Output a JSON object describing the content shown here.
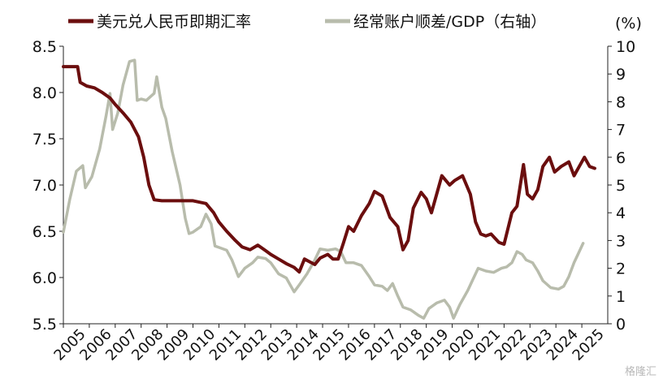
{
  "chart_data": {
    "type": "line",
    "legend": [
      {
        "label": "美元兑人民币即期汇率",
        "color": "#6b0e0e"
      },
      {
        "label": "经常账户顺差/GDP（右轴）",
        "color": "#b8bcac"
      }
    ],
    "left_axis": {
      "min": 5.5,
      "max": 8.5,
      "ticks": [
        "5.5",
        "6.0",
        "6.5",
        "7.0",
        "7.5",
        "8.0",
        "8.5"
      ]
    },
    "right_axis": {
      "unit_label": "(%)",
      "min": 0,
      "max": 10,
      "ticks": [
        "0",
        "1",
        "2",
        "3",
        "4",
        "5",
        "6",
        "7",
        "8",
        "9",
        "10"
      ]
    },
    "x_axis": {
      "labels": [
        "2005",
        "2006",
        "2007",
        "2008",
        "2009",
        "2010",
        "2011",
        "2012",
        "2013",
        "2014",
        "2015",
        "2016",
        "2017",
        "2018",
        "2019",
        "2020",
        "2021",
        "2022",
        "2023",
        "2024",
        "2025"
      ]
    },
    "series": [
      {
        "name": "美元兑人民币即期汇率",
        "axis": "left",
        "color": "#6b0e0e",
        "points": [
          [
            2005.0,
            8.28
          ],
          [
            2005.55,
            8.28
          ],
          [
            2005.65,
            8.11
          ],
          [
            2005.9,
            8.07
          ],
          [
            2006.2,
            8.05
          ],
          [
            2006.5,
            8.0
          ],
          [
            2006.8,
            7.94
          ],
          [
            2007.0,
            7.87
          ],
          [
            2007.3,
            7.78
          ],
          [
            2007.6,
            7.68
          ],
          [
            2007.9,
            7.52
          ],
          [
            2008.1,
            7.3
          ],
          [
            2008.3,
            7.0
          ],
          [
            2008.5,
            6.84
          ],
          [
            2008.8,
            6.83
          ],
          [
            2009.2,
            6.83
          ],
          [
            2009.6,
            6.83
          ],
          [
            2010.0,
            6.83
          ],
          [
            2010.5,
            6.8
          ],
          [
            2010.8,
            6.7
          ],
          [
            2011.0,
            6.6
          ],
          [
            2011.3,
            6.5
          ],
          [
            2011.6,
            6.41
          ],
          [
            2011.9,
            6.33
          ],
          [
            2012.2,
            6.3
          ],
          [
            2012.5,
            6.35
          ],
          [
            2012.8,
            6.29
          ],
          [
            2013.0,
            6.25
          ],
          [
            2013.3,
            6.2
          ],
          [
            2013.6,
            6.15
          ],
          [
            2013.9,
            6.11
          ],
          [
            2014.1,
            6.06
          ],
          [
            2014.3,
            6.2
          ],
          [
            2014.5,
            6.17
          ],
          [
            2014.7,
            6.14
          ],
          [
            2014.9,
            6.21
          ],
          [
            2015.2,
            6.25
          ],
          [
            2015.4,
            6.2
          ],
          [
            2015.6,
            6.2
          ],
          [
            2015.8,
            6.37
          ],
          [
            2016.0,
            6.55
          ],
          [
            2016.2,
            6.5
          ],
          [
            2016.5,
            6.67
          ],
          [
            2016.8,
            6.8
          ],
          [
            2017.0,
            6.93
          ],
          [
            2017.3,
            6.88
          ],
          [
            2017.6,
            6.65
          ],
          [
            2017.9,
            6.55
          ],
          [
            2018.1,
            6.3
          ],
          [
            2018.3,
            6.4
          ],
          [
            2018.5,
            6.75
          ],
          [
            2018.8,
            6.92
          ],
          [
            2019.0,
            6.85
          ],
          [
            2019.2,
            6.7
          ],
          [
            2019.4,
            6.9
          ],
          [
            2019.6,
            7.1
          ],
          [
            2019.9,
            7.0
          ],
          [
            2020.1,
            7.05
          ],
          [
            2020.4,
            7.1
          ],
          [
            2020.7,
            6.9
          ],
          [
            2020.9,
            6.6
          ],
          [
            2021.1,
            6.47
          ],
          [
            2021.3,
            6.45
          ],
          [
            2021.5,
            6.47
          ],
          [
            2021.8,
            6.38
          ],
          [
            2022.0,
            6.36
          ],
          [
            2022.3,
            6.7
          ],
          [
            2022.5,
            6.77
          ],
          [
            2022.75,
            7.22
          ],
          [
            2022.9,
            6.9
          ],
          [
            2023.1,
            6.85
          ],
          [
            2023.3,
            6.95
          ],
          [
            2023.5,
            7.2
          ],
          [
            2023.75,
            7.3
          ],
          [
            2023.95,
            7.14
          ],
          [
            2024.2,
            7.2
          ],
          [
            2024.5,
            7.25
          ],
          [
            2024.7,
            7.1
          ],
          [
            2024.9,
            7.2
          ],
          [
            2025.1,
            7.3
          ],
          [
            2025.3,
            7.2
          ],
          [
            2025.5,
            7.18
          ]
        ]
      },
      {
        "name": "经常账户顺差/GDP（右轴）",
        "axis": "right",
        "color": "#b8bcac",
        "points": [
          [
            2005.0,
            3.3
          ],
          [
            2005.25,
            4.5
          ],
          [
            2005.5,
            5.5
          ],
          [
            2005.75,
            5.7
          ],
          [
            2005.85,
            4.9
          ],
          [
            2006.1,
            5.3
          ],
          [
            2006.4,
            6.3
          ],
          [
            2006.65,
            7.5
          ],
          [
            2006.8,
            8.3
          ],
          [
            2006.9,
            7.0
          ],
          [
            2007.1,
            7.6
          ],
          [
            2007.3,
            8.6
          ],
          [
            2007.55,
            9.45
          ],
          [
            2007.75,
            9.5
          ],
          [
            2007.85,
            8.05
          ],
          [
            2008.0,
            8.1
          ],
          [
            2008.2,
            8.05
          ],
          [
            2008.5,
            8.3
          ],
          [
            2008.6,
            8.9
          ],
          [
            2008.8,
            7.8
          ],
          [
            2008.95,
            7.4
          ],
          [
            2009.2,
            6.2
          ],
          [
            2009.5,
            5.0
          ],
          [
            2009.7,
            3.8
          ],
          [
            2009.85,
            3.25
          ],
          [
            2010.0,
            3.3
          ],
          [
            2010.3,
            3.5
          ],
          [
            2010.5,
            3.95
          ],
          [
            2010.7,
            3.6
          ],
          [
            2010.85,
            2.8
          ],
          [
            2011.0,
            2.75
          ],
          [
            2011.3,
            2.65
          ],
          [
            2011.5,
            2.3
          ],
          [
            2011.75,
            1.7
          ],
          [
            2012.0,
            2.0
          ],
          [
            2012.3,
            2.2
          ],
          [
            2012.5,
            2.4
          ],
          [
            2012.8,
            2.35
          ],
          [
            2013.0,
            2.2
          ],
          [
            2013.3,
            1.8
          ],
          [
            2013.6,
            1.65
          ],
          [
            2013.9,
            1.15
          ],
          [
            2014.1,
            1.4
          ],
          [
            2014.4,
            1.8
          ],
          [
            2014.7,
            2.3
          ],
          [
            2014.9,
            2.7
          ],
          [
            2015.2,
            2.65
          ],
          [
            2015.5,
            2.7
          ],
          [
            2015.7,
            2.6
          ],
          [
            2015.9,
            2.2
          ],
          [
            2016.2,
            2.2
          ],
          [
            2016.5,
            2.1
          ],
          [
            2016.8,
            1.7
          ],
          [
            2017.0,
            1.4
          ],
          [
            2017.3,
            1.35
          ],
          [
            2017.5,
            1.2
          ],
          [
            2017.7,
            1.45
          ],
          [
            2017.9,
            1.0
          ],
          [
            2018.1,
            0.6
          ],
          [
            2018.4,
            0.5
          ],
          [
            2018.7,
            0.3
          ],
          [
            2018.9,
            0.2
          ],
          [
            2019.1,
            0.55
          ],
          [
            2019.4,
            0.75
          ],
          [
            2019.7,
            0.85
          ],
          [
            2019.9,
            0.6
          ],
          [
            2020.05,
            0.2
          ],
          [
            2020.3,
            0.7
          ],
          [
            2020.6,
            1.2
          ],
          [
            2020.8,
            1.6
          ],
          [
            2021.0,
            2.0
          ],
          [
            2021.3,
            1.9
          ],
          [
            2021.6,
            1.85
          ],
          [
            2021.9,
            2.0
          ],
          [
            2022.1,
            2.05
          ],
          [
            2022.3,
            2.2
          ],
          [
            2022.5,
            2.6
          ],
          [
            2022.7,
            2.5
          ],
          [
            2022.85,
            2.3
          ],
          [
            2023.1,
            2.2
          ],
          [
            2023.3,
            1.9
          ],
          [
            2023.5,
            1.55
          ],
          [
            2023.8,
            1.3
          ],
          [
            2024.1,
            1.25
          ],
          [
            2024.3,
            1.35
          ],
          [
            2024.5,
            1.7
          ],
          [
            2024.7,
            2.2
          ],
          [
            2024.9,
            2.6
          ],
          [
            2025.05,
            2.9
          ]
        ]
      }
    ]
  }
}
